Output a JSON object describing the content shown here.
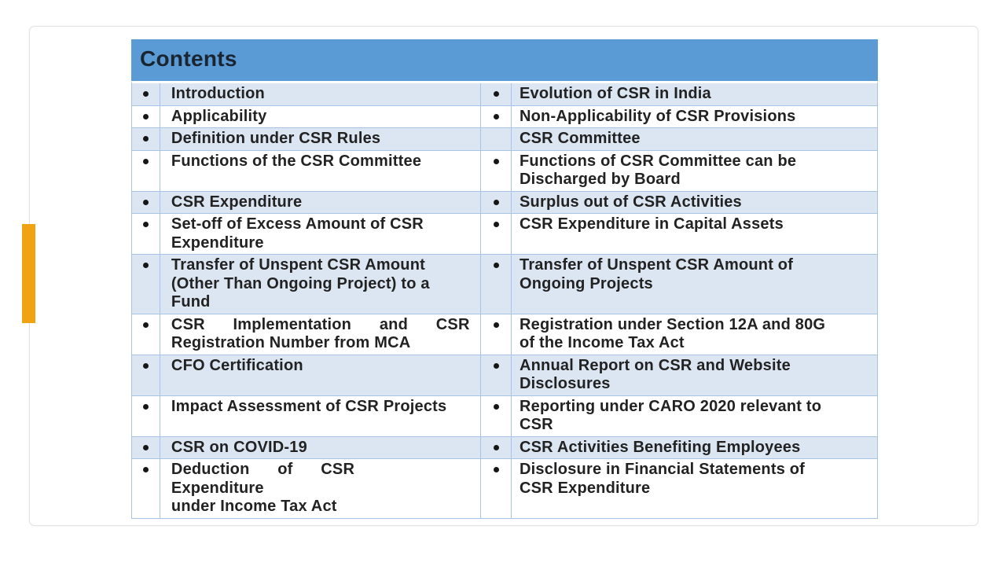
{
  "theme": {
    "header_bg": "#5B9BD5",
    "header_text_color": "#1B2531",
    "band_color": "#DCE6F2",
    "line_color": "#A8C4E4",
    "accent_bar_color": "#F0A30E",
    "body_text_color": "#222222",
    "bullet_color": "#161616"
  },
  "table": {
    "title": "Contents",
    "rows": [
      {
        "left": {
          "bullet": true,
          "text": "Introduction"
        },
        "right": {
          "bullet": true,
          "text": "Evolution of CSR in India"
        }
      },
      {
        "left": {
          "bullet": true,
          "text": "Applicability"
        },
        "right": {
          "bullet": true,
          "text": "Non-Applicability of CSR Provisions"
        }
      },
      {
        "left": {
          "bullet": true,
          "text": "Definition under CSR Rules"
        },
        "right": {
          "bullet": false,
          "text": "CSR Committee"
        }
      },
      {
        "left": {
          "bullet": true,
          "text": "Functions of the CSR Committee"
        },
        "right": {
          "bullet": true,
          "text": "Functions of CSR Committee can be\nDischarged by Board"
        }
      },
      {
        "left": {
          "bullet": true,
          "text": "CSR Expenditure"
        },
        "right": {
          "bullet": true,
          "text": "Surplus out of CSR Activities"
        }
      },
      {
        "left": {
          "bullet": true,
          "text": "Set-off of Excess Amount of CSR\nExpenditure"
        },
        "right": {
          "bullet": true,
          "text": "CSR Expenditure in Capital Assets"
        }
      },
      {
        "left": {
          "bullet": true,
          "text": "Transfer of Unspent CSR Amount\n(Other Than Ongoing Project) to a\nFund"
        },
        "right": {
          "bullet": true,
          "text": "Transfer of Unspent CSR Amount of\nOngoing Projects"
        }
      },
      {
        "left": {
          "bullet": true,
          "justify": true,
          "text": "CSR Implementation and CSR\nRegistration Number from MCA"
        },
        "right": {
          "bullet": true,
          "text": "Registration under Section 12A and 80G\nof the Income Tax Act"
        }
      },
      {
        "left": {
          "bullet": true,
          "text": "CFO Certification"
        },
        "right": {
          "bullet": true,
          "text": "Annual Report on CSR and Website\nDisclosures"
        }
      },
      {
        "left": {
          "bullet": true,
          "text": "Impact Assessment of CSR Projects"
        },
        "right": {
          "bullet": true,
          "text": "Reporting under CARO 2020 relevant to\nCSR"
        }
      },
      {
        "left": {
          "bullet": true,
          "text": "CSR on COVID-19"
        },
        "right": {
          "bullet": true,
          "text": "CSR Activities Benefiting Employees"
        }
      },
      {
        "left": {
          "bullet": true,
          "justify": true,
          "text": "Deduction of CSR Expenditure\nunder Income Tax Act"
        },
        "right": {
          "bullet": true,
          "text": "Disclosure in Financial Statements of\nCSR Expenditure"
        }
      }
    ]
  }
}
